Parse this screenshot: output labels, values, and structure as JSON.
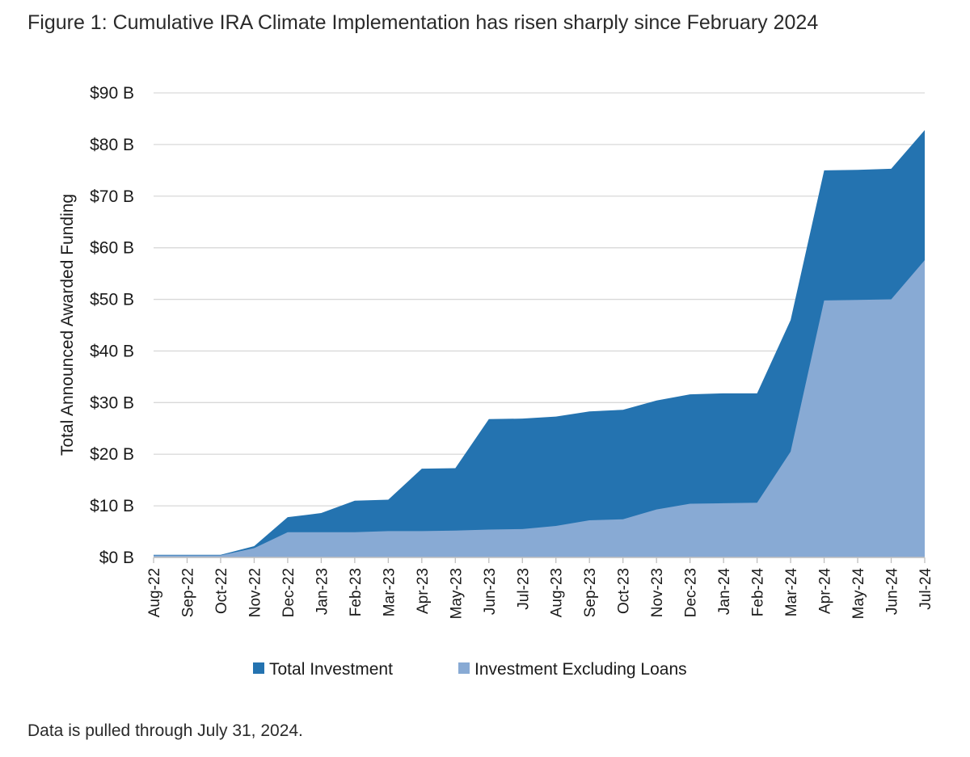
{
  "figure": {
    "title": "Figure 1: Cumulative IRA Climate Implementation has risen sharply since February 2024",
    "footnote": "Data is pulled through July 31, 2024."
  },
  "chart_data": {
    "type": "area",
    "title": "Figure 1: Cumulative IRA Climate Implementation has risen sharply since February 2024",
    "xlabel": "",
    "ylabel": "Total Announced Awarded Funding",
    "ylim": [
      0,
      90
    ],
    "yticks": [
      0,
      10,
      20,
      30,
      40,
      50,
      60,
      70,
      80,
      90
    ],
    "ytick_labels": [
      "$0 B",
      "$10 B",
      "$20 B",
      "$30 B",
      "$40 B",
      "$50 B",
      "$60 B",
      "$70 B",
      "$80 B",
      "$90 B"
    ],
    "grid": true,
    "legend_position": "bottom",
    "categories": [
      "Aug-22",
      "Sep-22",
      "Oct-22",
      "Nov-22",
      "Dec-22",
      "Jan-23",
      "Feb-23",
      "Mar-23",
      "Apr-23",
      "May-23",
      "Jun-23",
      "Jul-23",
      "Aug-23",
      "Sep-23",
      "Oct-23",
      "Nov-23",
      "Dec-23",
      "Jan-24",
      "Feb-24",
      "Mar-24",
      "Apr-24",
      "May-24",
      "Jun-24",
      "Jul-24"
    ],
    "series": [
      {
        "name": "Total Investment",
        "color": "#2473b0",
        "values": [
          0.5,
          0.5,
          0.5,
          2.2,
          7.8,
          8.6,
          11.0,
          11.2,
          17.2,
          17.3,
          26.8,
          26.9,
          27.3,
          28.3,
          28.6,
          30.4,
          31.6,
          31.8,
          31.8,
          46.0,
          75.0,
          75.1,
          75.3,
          82.8
        ]
      },
      {
        "name": "Investment Excluding Loans",
        "color": "#88aad4",
        "values": [
          0.4,
          0.4,
          0.4,
          1.8,
          4.9,
          4.9,
          4.9,
          5.1,
          5.1,
          5.2,
          5.4,
          5.5,
          6.1,
          7.2,
          7.4,
          9.3,
          10.4,
          10.5,
          10.6,
          20.5,
          49.8,
          49.9,
          50.0,
          57.6
        ]
      }
    ]
  }
}
